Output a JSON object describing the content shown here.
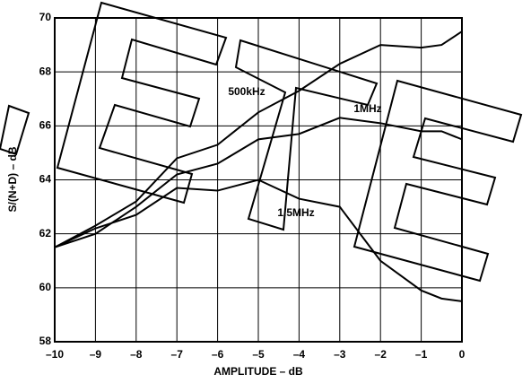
{
  "chart_data": {
    "type": "line",
    "x_label": "AMPLITUDE – dB",
    "y_label": "S/(N+D) – dB",
    "x": [
      -10,
      -9,
      -8,
      -7,
      -6,
      -5,
      -4,
      -3,
      -2,
      -1,
      -0.5,
      0
    ],
    "series": [
      {
        "name": "500kHz",
        "color": "#000000",
        "values": [
          61.5,
          62.3,
          63.2,
          64.8,
          65.3,
          66.5,
          67.3,
          68.3,
          69.0,
          68.9,
          69.0,
          69.5
        ]
      },
      {
        "name": "1MHz",
        "color": "#000000",
        "values": [
          61.5,
          62.0,
          63.0,
          64.2,
          64.6,
          65.5,
          65.7,
          66.3,
          66.1,
          65.8,
          65.8,
          65.5
        ]
      },
      {
        "name": "1.5MHz",
        "color": "#000000",
        "values": [
          61.5,
          62.2,
          62.7,
          63.7,
          63.6,
          64.0,
          63.3,
          63.0,
          61.0,
          59.9,
          59.6,
          59.5
        ]
      }
    ],
    "xlim": [
      -10,
      0
    ],
    "xticks": [
      {
        "value": -10,
        "label": "–10"
      },
      {
        "value": -9,
        "label": "–9"
      },
      {
        "value": -8,
        "label": "–8"
      },
      {
        "value": -7,
        "label": "–7"
      },
      {
        "value": -6,
        "label": "–6"
      },
      {
        "value": -5,
        "label": "–5"
      },
      {
        "value": -4,
        "label": "–4"
      },
      {
        "value": -3,
        "label": "–3"
      },
      {
        "value": -2,
        "label": "–2"
      },
      {
        "value": -1,
        "label": "–1"
      },
      0
    ],
    "ylim": [
      58,
      70
    ],
    "yticks": [
      58,
      60,
      62,
      64,
      66,
      68,
      70
    ],
    "grid": true
  }
}
